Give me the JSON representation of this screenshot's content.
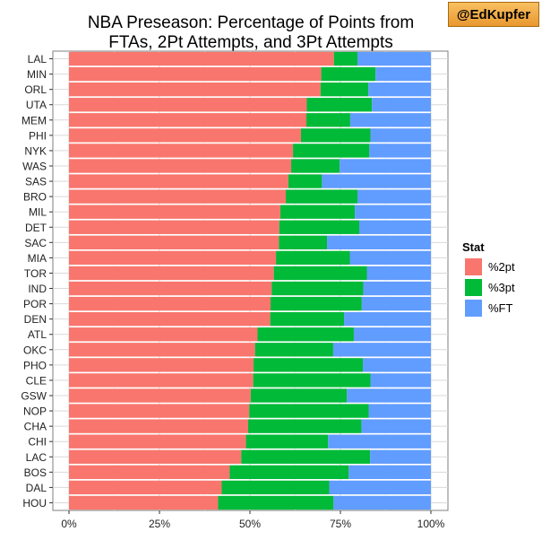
{
  "badge": {
    "text": "@EdKupfer"
  },
  "chart_data": {
    "type": "bar",
    "orientation": "horizontal",
    "stacked": true,
    "title": "NBA Preseason: Percentage of Points from FTAs, 2Pt Attempts, and 3Pt Attempts",
    "title_line1": "NBA Preseason: Percentage of Points from",
    "title_line2": "FTAs, 2Pt Attempts, and 3Pt Attempts",
    "categories": [
      "LAL",
      "MIN",
      "ORL",
      "UTA",
      "MEM",
      "PHI",
      "NYK",
      "WAS",
      "SAS",
      "BRO",
      "MIL",
      "DET",
      "SAC",
      "MIA",
      "TOR",
      "IND",
      "POR",
      "DEN",
      "ATL",
      "OKC",
      "PHO",
      "CLE",
      "GSW",
      "NOP",
      "CHA",
      "CHI",
      "LAC",
      "BOS",
      "DAL",
      "HOU"
    ],
    "series": [
      {
        "name": "%2pt",
        "color": "#f8766d",
        "values": [
          73.2,
          69.7,
          69.5,
          65.7,
          65.6,
          64.1,
          61.9,
          61.4,
          60.6,
          59.9,
          58.4,
          58.1,
          58.0,
          57.2,
          56.6,
          56.0,
          55.7,
          55.6,
          52.1,
          51.4,
          51.0,
          50.9,
          50.2,
          49.8,
          49.5,
          48.9,
          47.6,
          44.4,
          42.2,
          41.2
        ]
      },
      {
        "name": "%3pt",
        "color": "#00ba38",
        "values": [
          6.5,
          15.0,
          13.2,
          18.0,
          12.1,
          19.2,
          21.1,
          13.4,
          9.3,
          19.8,
          20.6,
          22.1,
          13.3,
          20.4,
          25.7,
          25.3,
          25.2,
          20.4,
          26.6,
          21.6,
          30.2,
          32.4,
          26.6,
          33.0,
          31.3,
          22.7,
          35.6,
          32.9,
          29.7,
          31.9
        ]
      },
      {
        "name": "%FT",
        "color": "#619cff",
        "values": [
          20.3,
          15.3,
          17.3,
          16.3,
          22.3,
          16.7,
          17.0,
          25.2,
          30.1,
          20.3,
          21.0,
          19.8,
          28.7,
          22.4,
          17.7,
          18.7,
          19.1,
          24.0,
          21.3,
          27.0,
          18.8,
          16.7,
          23.2,
          17.2,
          19.2,
          28.4,
          16.8,
          22.7,
          28.1,
          26.9
        ]
      }
    ],
    "xlim": [
      0,
      100
    ],
    "x_ticks": [
      "0%",
      "25%",
      "50%",
      "75%",
      "100%"
    ],
    "xlabel": "",
    "ylabel": "",
    "grid": true,
    "legend": {
      "title": "Stat",
      "position": "right",
      "labels": [
        "%2pt",
        "%3pt",
        "%FT"
      ]
    }
  }
}
